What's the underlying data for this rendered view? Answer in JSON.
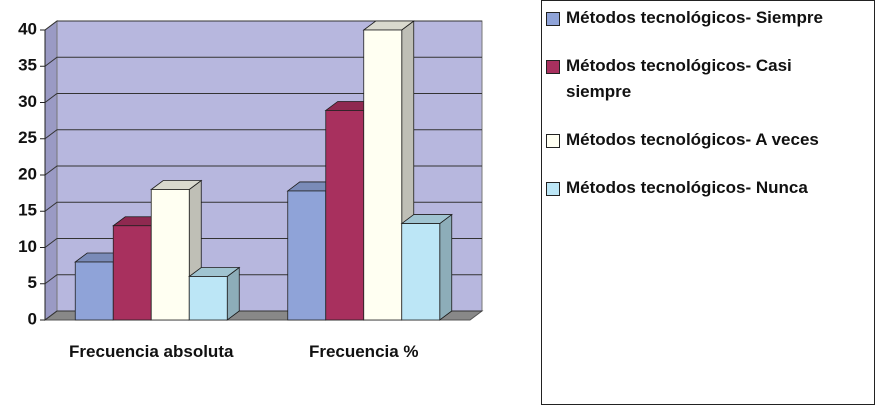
{
  "chart_data": {
    "type": "bar",
    "categories": [
      "Frecuencia absoluta",
      "Frecuencia %"
    ],
    "series": [
      {
        "name": "Métodos tecnológicos- Siempre",
        "color": "#8fa3d8",
        "values": [
          8,
          17.8
        ]
      },
      {
        "name": "Métodos tecnológicos- Casi siempre",
        "color": "#a8305e",
        "values": [
          13,
          28.9
        ]
      },
      {
        "name": "Métodos tecnológicos- A veces",
        "color": "#fffff2",
        "values": [
          18,
          40
        ]
      },
      {
        "name": "Métodos tecnológicos- Nunca",
        "color": "#bce6f6",
        "values": [
          6,
          13.3
        ]
      }
    ],
    "ylim": [
      0,
      40
    ],
    "yticks": [
      0,
      5,
      10,
      15,
      20,
      25,
      30,
      35,
      40
    ],
    "grid": true,
    "legend": "right"
  }
}
